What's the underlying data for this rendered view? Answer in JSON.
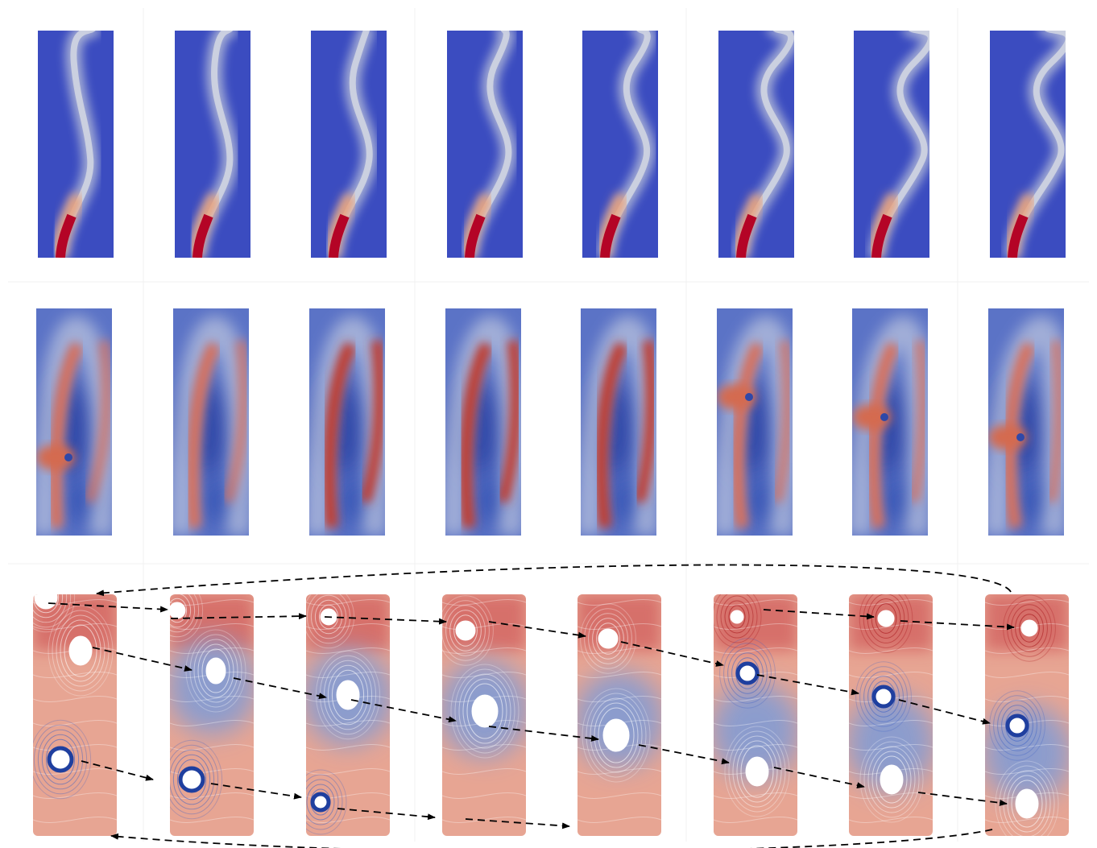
{
  "figure": {
    "rows": [
      {
        "kind": "plume",
        "name": "row-plume-fields",
        "count": 8
      },
      {
        "kind": "mode",
        "name": "row-mode-fields",
        "count": 8
      },
      {
        "kind": "streamline",
        "name": "row-streamline-vortices",
        "count": 8
      }
    ],
    "colormap": {
      "low": "#3b4cc0",
      "mid": "#dddddd",
      "high": "#b40426",
      "dark_red": "#a50f15",
      "line_red": "#cc4c4c",
      "line_blue": "#3a5fc4"
    },
    "arrow_style": "dashed black"
  }
}
